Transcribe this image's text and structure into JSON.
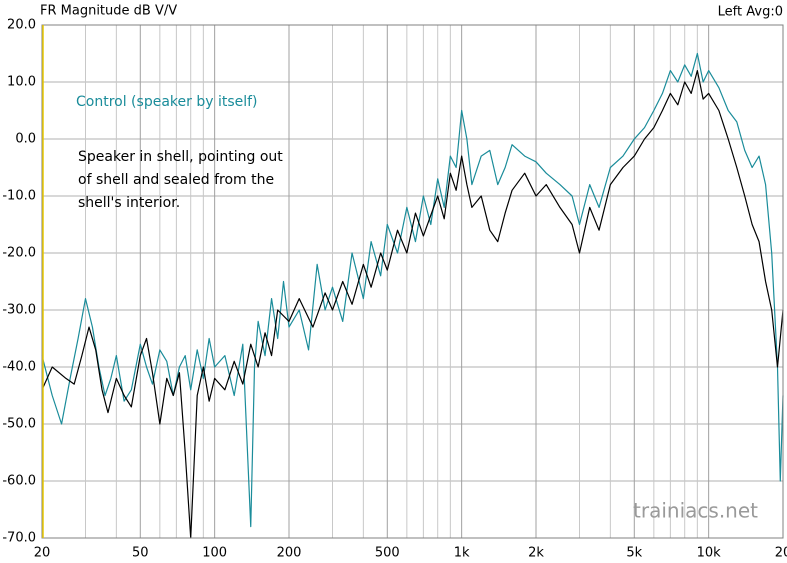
{
  "chart_data": {
    "type": "line",
    "title": "FR Magnitude dB V/V",
    "subtitle": "Left  Avg:0",
    "annotations": [
      "Control (speaker by itself)",
      "Speaker in shell, pointing out",
      "of shell and sealed from the",
      "shell's interior."
    ],
    "watermark": "trainiacs.net",
    "xlog": true,
    "grid": true,
    "xlim": [
      20,
      20000
    ],
    "ylim": [
      -70,
      20
    ],
    "xticks": [
      20,
      50,
      100,
      200,
      500,
      {
        "value": 1000,
        "label": "1k"
      },
      {
        "value": 2000,
        "label": "2k"
      },
      {
        "value": 5000,
        "label": "5k"
      },
      {
        "value": 10000,
        "label": "10k"
      },
      {
        "value": 20000,
        "label": "20"
      }
    ],
    "xminor": [
      30,
      40,
      60,
      70,
      80,
      90,
      300,
      400,
      600,
      700,
      800,
      900,
      3000,
      4000,
      6000,
      7000,
      8000,
      9000
    ],
    "yticks": [
      {
        "value": 20,
        "label": "20.0"
      },
      {
        "value": 10,
        "label": "10.0"
      },
      {
        "value": 0,
        "label": "0.0"
      },
      {
        "value": -10,
        "label": "-10.0"
      },
      {
        "value": -20,
        "label": "-20.0"
      },
      {
        "value": -30,
        "label": "-30.0"
      },
      {
        "value": -40,
        "label": "-40.0"
      },
      {
        "value": -50,
        "label": "-50.0"
      },
      {
        "value": -60,
        "label": "-60.0"
      },
      {
        "value": -70,
        "label": "-70.0"
      }
    ],
    "series": [
      {
        "name": "Control (speaker by itself)",
        "color": "#1a8c9a",
        "x": [
          20,
          22,
          24,
          26,
          28,
          30,
          32,
          34,
          36,
          38,
          40,
          43,
          46,
          50,
          53,
          56,
          60,
          64,
          68,
          72,
          76,
          80,
          85,
          90,
          95,
          100,
          110,
          120,
          130,
          140,
          145,
          150,
          160,
          170,
          180,
          190,
          200,
          220,
          240,
          260,
          280,
          300,
          330,
          360,
          400,
          430,
          470,
          500,
          550,
          600,
          650,
          700,
          750,
          800,
          850,
          900,
          950,
          1000,
          1050,
          1100,
          1200,
          1300,
          1400,
          1500,
          1600,
          1800,
          2000,
          2200,
          2500,
          2800,
          3000,
          3300,
          3600,
          4000,
          4500,
          5000,
          5500,
          6000,
          6500,
          7000,
          7500,
          8000,
          8500,
          9000,
          9500,
          10000,
          11000,
          12000,
          13000,
          14000,
          15000,
          16000,
          17000,
          18000,
          19000,
          19500,
          20000
        ],
        "values": [
          -38,
          -45,
          -50,
          -42,
          -35,
          -28,
          -33,
          -40,
          -45,
          -42,
          -38,
          -46,
          -44,
          -36,
          -40,
          -43,
          -37,
          -39,
          -45,
          -40,
          -38,
          -44,
          -37,
          -42,
          -35,
          -40,
          -38,
          -45,
          -36,
          -68,
          -40,
          -32,
          -38,
          -28,
          -35,
          -25,
          -33,
          -30,
          -37,
          -22,
          -30,
          -26,
          -32,
          -20,
          -28,
          -18,
          -24,
          -15,
          -20,
          -12,
          -18,
          -10,
          -15,
          -7,
          -12,
          -3,
          -5,
          5,
          0,
          -8,
          -3,
          -2,
          -8,
          -5,
          -1,
          -3,
          -4,
          -6,
          -8,
          -10,
          -15,
          -8,
          -12,
          -5,
          -3,
          0,
          2,
          5,
          8,
          12,
          10,
          13,
          11,
          15,
          10,
          12,
          9,
          5,
          3,
          -2,
          -5,
          -3,
          -8,
          -20,
          -40,
          -60,
          -45
        ]
      },
      {
        "name": "Speaker in shell",
        "color": "#000000",
        "x": [
          20,
          22,
          25,
          27,
          29,
          31,
          33,
          35,
          37,
          40,
          43,
          46,
          50,
          53,
          56,
          60,
          64,
          68,
          72,
          76,
          80,
          85,
          90,
          95,
          100,
          110,
          120,
          130,
          140,
          150,
          160,
          170,
          180,
          200,
          220,
          250,
          280,
          300,
          330,
          360,
          400,
          430,
          470,
          500,
          550,
          600,
          650,
          700,
          800,
          850,
          900,
          950,
          1000,
          1050,
          1100,
          1200,
          1300,
          1400,
          1500,
          1600,
          1800,
          2000,
          2200,
          2500,
          2800,
          3000,
          3300,
          3600,
          4000,
          4500,
          5000,
          5500,
          6000,
          6500,
          7000,
          7500,
          8000,
          8500,
          9000,
          9500,
          10000,
          11000,
          12000,
          13000,
          14000,
          15000,
          16000,
          17000,
          18000,
          19000,
          20000
        ],
        "values": [
          -44,
          -40,
          -42,
          -43,
          -38,
          -33,
          -37,
          -44,
          -48,
          -42,
          -45,
          -47,
          -38,
          -35,
          -41,
          -50,
          -42,
          -45,
          -41,
          -55,
          -70,
          -45,
          -40,
          -46,
          -42,
          -44,
          -39,
          -43,
          -36,
          -40,
          -34,
          -38,
          -30,
          -32,
          -28,
          -33,
          -27,
          -30,
          -25,
          -29,
          -22,
          -26,
          -20,
          -23,
          -16,
          -20,
          -13,
          -17,
          -10,
          -14,
          -6,
          -9,
          -3,
          -8,
          -12,
          -10,
          -16,
          -18,
          -13,
          -9,
          -6,
          -10,
          -8,
          -12,
          -15,
          -20,
          -12,
          -16,
          -8,
          -5,
          -3,
          0,
          2,
          5,
          8,
          6,
          10,
          8,
          12,
          7,
          8,
          5,
          0,
          -5,
          -10,
          -15,
          -18,
          -25,
          -30,
          -40,
          -30
        ]
      }
    ]
  }
}
